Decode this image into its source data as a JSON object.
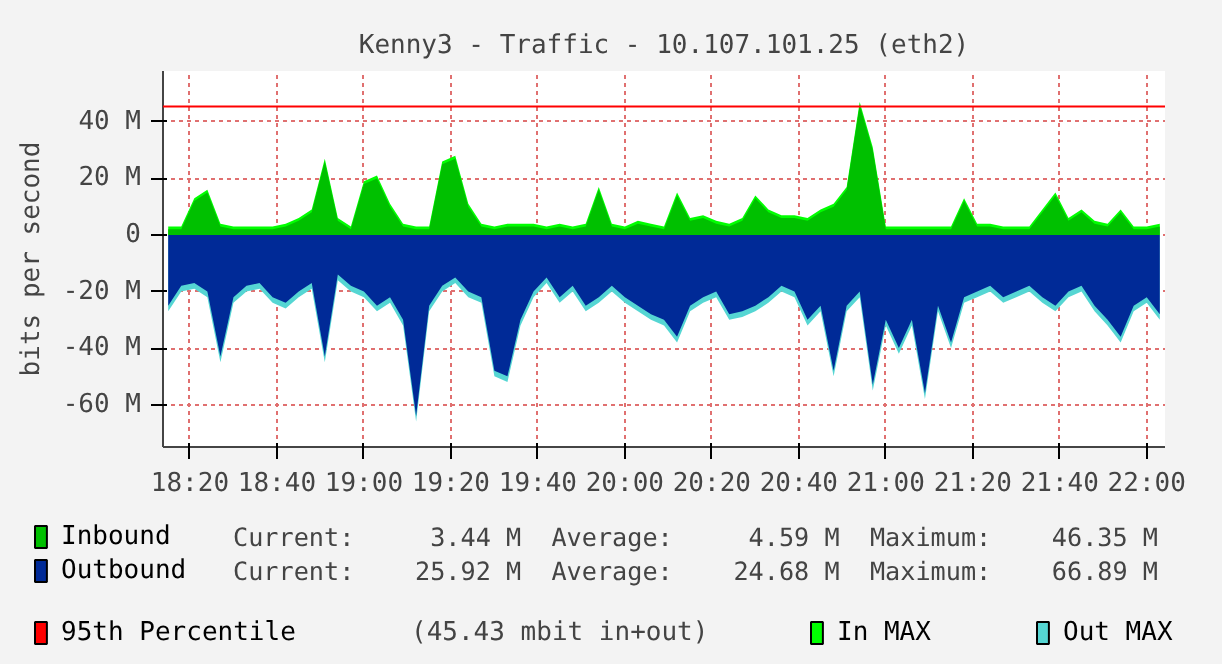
{
  "chart_data": {
    "type": "area",
    "title": "Kenny3 - Traffic - 10.107.101.25 (eth2)",
    "ylabel": "bits per second",
    "x": [
      18.25,
      18.3,
      18.35,
      18.4,
      18.45,
      18.5,
      18.55,
      18.6,
      18.65,
      18.7,
      18.75,
      18.8,
      18.85,
      18.9,
      18.95,
      19,
      19.05,
      19.1,
      19.15,
      19.2,
      19.25,
      19.3,
      19.35,
      19.4,
      19.45,
      19.5,
      19.55,
      19.6,
      19.65,
      19.7,
      19.75,
      19.8,
      19.85,
      19.9,
      19.95,
      20,
      20.05,
      20.1,
      20.15,
      20.2,
      20.25,
      20.3,
      20.35,
      20.4,
      20.45,
      20.5,
      20.55,
      20.6,
      20.65,
      20.7,
      20.75,
      20.8,
      20.85,
      20.9,
      20.95,
      21,
      21.05,
      21.1,
      21.15,
      21.2,
      21.25,
      21.3,
      21.35,
      21.4,
      21.45,
      21.5,
      21.55,
      21.6,
      21.65,
      21.7,
      21.75,
      21.8,
      21.85,
      21.9,
      21.95,
      22,
      22.05
    ],
    "series": [
      {
        "name": "Inbound",
        "color": "#00c000",
        "values": [
          2,
          2,
          12,
          15,
          3,
          2,
          2,
          2,
          2,
          3,
          5,
          8,
          26,
          5,
          2,
          18,
          20,
          10,
          3,
          2,
          2,
          25,
          27,
          10,
          3,
          2,
          3,
          3,
          3,
          2,
          3,
          2,
          3,
          16,
          3,
          2,
          4,
          3,
          2,
          14,
          5,
          6,
          4,
          3,
          5,
          13,
          8,
          6,
          6,
          5,
          8,
          10,
          16,
          46,
          30,
          2,
          2,
          2,
          2,
          2,
          2,
          12,
          3,
          3,
          2,
          2,
          2,
          8,
          14,
          5,
          8,
          4,
          3,
          8,
          2,
          2,
          3
        ]
      },
      {
        "name": "Outbound",
        "color": "#002a97",
        "values": [
          -25,
          -18,
          -17,
          -20,
          -43,
          -22,
          -18,
          -17,
          -22,
          -24,
          -20,
          -17,
          -43,
          -14,
          -18,
          -20,
          -25,
          -22,
          -30,
          -64,
          -25,
          -18,
          -15,
          -20,
          -22,
          -48,
          -50,
          -30,
          -20,
          -15,
          -22,
          -18,
          -25,
          -22,
          -18,
          -22,
          -25,
          -28,
          -30,
          -36,
          -25,
          -22,
          -20,
          -28,
          -27,
          -25,
          -22,
          -18,
          -20,
          -30,
          -25,
          -48,
          -25,
          -20,
          -53,
          -30,
          -40,
          -30,
          -56,
          -25,
          -38,
          -22,
          -20,
          -18,
          -22,
          -20,
          -18,
          -22,
          -25,
          -20,
          -18,
          -25,
          -30,
          -36,
          -25,
          -22,
          -28
        ]
      },
      {
        "name": "In MAX",
        "color": "#00ff00",
        "values": [
          3,
          3,
          13,
          16,
          4,
          3,
          3,
          3,
          3,
          4,
          6,
          9,
          27,
          6,
          3,
          19,
          21,
          11,
          4,
          3,
          3,
          26,
          28,
          11,
          4,
          3,
          4,
          4,
          4,
          3,
          4,
          3,
          4,
          17,
          4,
          3,
          5,
          4,
          3,
          15,
          6,
          7,
          5,
          4,
          6,
          14,
          9,
          7,
          7,
          6,
          9,
          11,
          17,
          47,
          31,
          3,
          3,
          3,
          3,
          3,
          3,
          13,
          4,
          4,
          3,
          3,
          3,
          9,
          15,
          6,
          9,
          5,
          4,
          9,
          3,
          3,
          4
        ]
      },
      {
        "name": "Out MAX",
        "color": "#55d6d3",
        "values": [
          -27,
          -20,
          -19,
          -22,
          -45,
          -24,
          -20,
          -19,
          -24,
          -26,
          -22,
          -19,
          -45,
          -16,
          -20,
          -22,
          -27,
          -24,
          -32,
          -66,
          -27,
          -20,
          -17,
          -22,
          -24,
          -50,
          -52,
          -32,
          -22,
          -17,
          -24,
          -20,
          -27,
          -24,
          -20,
          -24,
          -27,
          -30,
          -32,
          -38,
          -27,
          -24,
          -22,
          -30,
          -29,
          -27,
          -24,
          -20,
          -22,
          -32,
          -27,
          -50,
          -27,
          -22,
          -55,
          -32,
          -42,
          -32,
          -58,
          -27,
          -40,
          -24,
          -22,
          -20,
          -24,
          -22,
          -20,
          -24,
          -27,
          -22,
          -20,
          -27,
          -32,
          -38,
          -27,
          -24,
          -30
        ]
      }
    ],
    "xlim": [
      18.23,
      22.07
    ],
    "ylim": [
      -75,
      58
    ],
    "xticks": [
      {
        "value": 18.3333,
        "label": "18:20"
      },
      {
        "value": 18.6667,
        "label": "18:40"
      },
      {
        "value": 19,
        "label": "19:00"
      },
      {
        "value": 19.3333,
        "label": "19:20"
      },
      {
        "value": 19.6667,
        "label": "19:40"
      },
      {
        "value": 20,
        "label": "20:00"
      },
      {
        "value": 20.3333,
        "label": "20:20"
      },
      {
        "value": 20.6667,
        "label": "20:40"
      },
      {
        "value": 21,
        "label": "21:00"
      },
      {
        "value": 21.3333,
        "label": "21:20"
      },
      {
        "value": 21.6667,
        "label": "21:40"
      },
      {
        "value": 22,
        "label": "22:00"
      }
    ],
    "yticks": [
      {
        "value": -60,
        "label": "-60 M"
      },
      {
        "value": -40,
        "label": "-40 M"
      },
      {
        "value": -20,
        "label": "-20 M"
      },
      0,
      {
        "value": 20,
        "label": "20 M"
      },
      {
        "value": 40,
        "label": "40 M"
      }
    ],
    "ref_lines": [
      {
        "axis": "y",
        "value": 45.43,
        "label": "95th Percentile",
        "color": "#ff0000"
      }
    ],
    "annotations": [
      "Current:     3.44 M  Average:     4.59 M  Maximum:    46.35 M",
      "Current:    25.92 M  Average:    24.68 M  Maximum:    66.89 M",
      "(45.43 mbit in+out)"
    ],
    "grid": true,
    "legend": "bottom"
  }
}
